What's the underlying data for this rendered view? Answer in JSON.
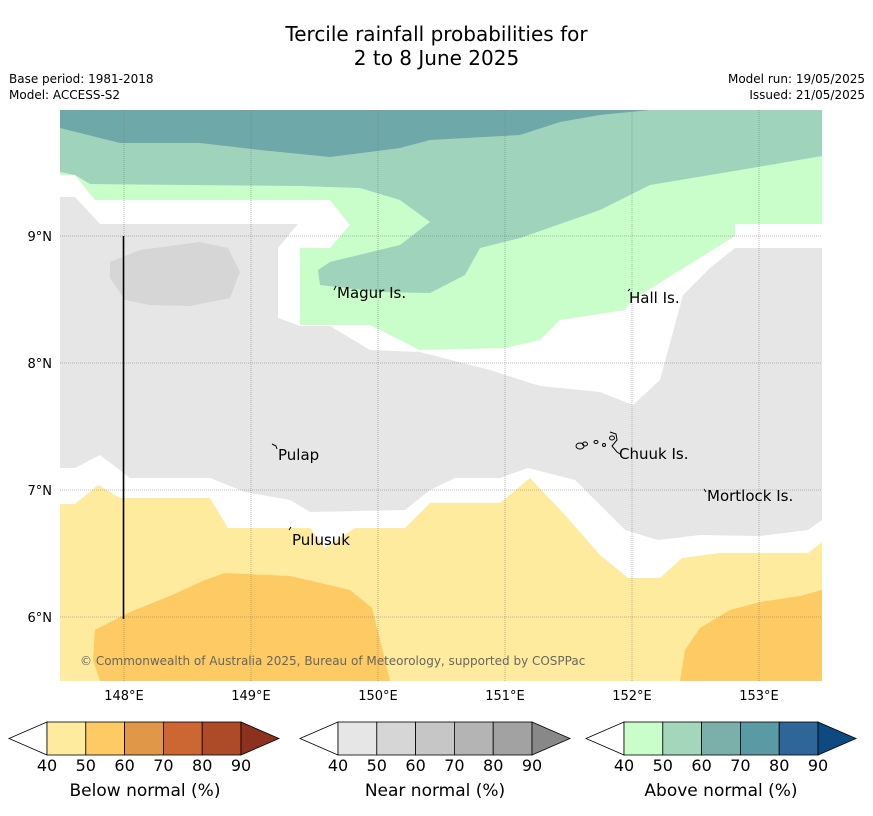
{
  "title_line1": "Tercile rainfall probabilities for",
  "title_line2": "2 to 8 June 2025",
  "base_period": "Base period: 1981-2018",
  "model": "Model: ACCESS-S2",
  "model_run": "Model run: 19/05/2025",
  "issued": "Issued: 21/05/2025",
  "copyright": "© Commonwealth of Australia 2025, Bureau of Meteorology, supported by COSPPac",
  "x_ticks": [
    "148°E",
    "149°E",
    "150°E",
    "151°E",
    "152°E",
    "153°E"
  ],
  "y_ticks": [
    "9°N",
    "8°N",
    "7°N",
    "6°N"
  ],
  "places": [
    "Magur Is.",
    "Hall Is.",
    "Pulap",
    "Chuuk Is.",
    "Mortlock Is.",
    "Pulusuk"
  ],
  "legend": {
    "below": {
      "label": "Below normal (%)",
      "ticks": [
        "40",
        "50",
        "60",
        "70",
        "80",
        "90"
      ],
      "colors": [
        "#ffeb9e",
        "#fdca63",
        "#e09848",
        "#cc6632",
        "#ad4a28",
        "#8c3020"
      ]
    },
    "near": {
      "label": "Near normal (%)",
      "ticks": [
        "40",
        "50",
        "60",
        "70",
        "80",
        "90"
      ],
      "colors": [
        "#e6e6e6",
        "#d6d6d6",
        "#c6c6c6",
        "#b4b4b4",
        "#a2a2a2",
        "#888888"
      ]
    },
    "above": {
      "label": "Above normal (%)",
      "ticks": [
        "40",
        "50",
        "60",
        "70",
        "80",
        "90"
      ],
      "colors": [
        "#c9fdc9",
        "#a4d6bb",
        "#7bb0aa",
        "#5a9aa4",
        "#2f6699",
        "#0d4a80"
      ]
    }
  },
  "map_colors": {
    "below_40": "#ffeb9e",
    "below_50": "#fdca63",
    "near_40": "#e6e6e6",
    "near_50": "#d6d6d6",
    "above_40": "#c9fdc9",
    "above_50": "#9fd3bb",
    "above_60": "#6fa8a8",
    "gridline": "#777777"
  }
}
